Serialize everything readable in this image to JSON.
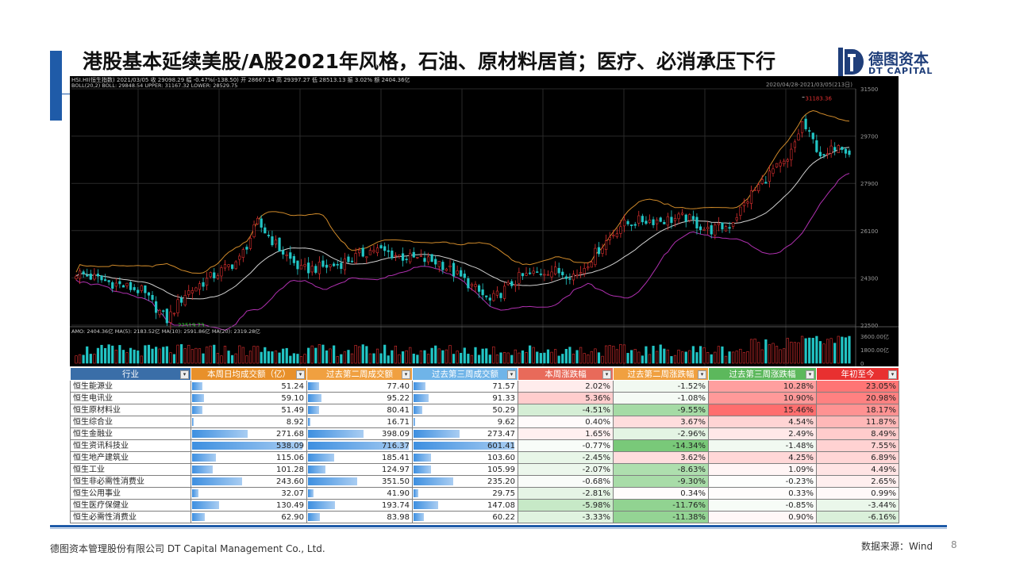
{
  "header": {
    "title": "港股基本延续美股/A股2021年风格，石油、原材料居首；医疗、必消承压下行",
    "logo_cn": "德图资本",
    "logo_en": "DT CAPITAL"
  },
  "chart_data": [
    {
      "type": "candlestick",
      "info_line_1": "HSI.HI(恒生指数)   2021/03/05  收 29098.29  幅 -0.47%(-138.50)  开 28667.14  高 29397.27  低 28513.13  振 3.02%  额 2404.36亿",
      "info_line_2": "BOLL(20,2) BOLL: 29848.54  UPPER: 31167.32  LOWER: 28529.75",
      "date_range": "2020/04/28-2021/03/05(213日)",
      "yticks": [
        31500,
        29700,
        27900,
        26100,
        24300,
        22500
      ],
      "ylim": [
        22500,
        31500
      ],
      "max_label": "31183.36",
      "min_label": "22519.73",
      "colors": {
        "up": "#e03030",
        "down": "#22c5c5",
        "mid": "#d0d0d0",
        "upper": "#d08a2a",
        "lower": "#b030b0"
      }
    },
    {
      "type": "bar",
      "info_line": "AMO: 2404.36亿  MA(5): 2183.52亿  MA(10): 2591.86亿  MA(20): 2319.28亿",
      "yticks": [
        "3600.00亿",
        "1800.00亿",
        "0"
      ]
    },
    {
      "type": "table",
      "columns": [
        "行业",
        "本周日均成交额（亿）",
        "过去第二周成交额",
        "过去第三周成交额",
        "本周涨跌幅",
        "过去第二周涨跌幅",
        "过去第三周涨跌幅",
        "年初至今"
      ],
      "header_colors": [
        "#3a6ea8",
        "#e8902a",
        "#f0a040",
        "#6fb4e8",
        "#e86a5a",
        "#f0a040",
        "#5cb85c",
        "#e83030"
      ],
      "rows": [
        {
          "name": "恒生能源业",
          "v1": "51.24",
          "v2": "77.40",
          "v3": "71.57",
          "c1": "2.02%",
          "c2": "-1.52%",
          "c3": "10.28%",
          "ytd": "23.05%"
        },
        {
          "name": "恒生电讯业",
          "v1": "59.10",
          "v2": "95.22",
          "v3": "91.33",
          "c1": "5.36%",
          "c2": "-1.08%",
          "c3": "10.90%",
          "ytd": "20.98%"
        },
        {
          "name": "恒生原材料业",
          "v1": "51.49",
          "v2": "80.41",
          "v3": "50.29",
          "c1": "-4.51%",
          "c2": "-9.55%",
          "c3": "15.46%",
          "ytd": "18.17%"
        },
        {
          "name": "恒生综合业",
          "v1": "8.92",
          "v2": "16.71",
          "v3": "9.62",
          "c1": "0.40%",
          "c2": "3.67%",
          "c3": "4.54%",
          "ytd": "11.87%"
        },
        {
          "name": "恒生金融业",
          "v1": "271.68",
          "v2": "398.09",
          "v3": "273.47",
          "c1": "1.65%",
          "c2": "-2.96%",
          "c3": "2.49%",
          "ytd": "8.49%"
        },
        {
          "name": "恒生资讯科技业",
          "v1": "538.09",
          "v2": "716.37",
          "v3": "601.41",
          "c1": "-0.77%",
          "c2": "-14.34%",
          "c3": "-1.48%",
          "ytd": "7.55%"
        },
        {
          "name": "恒生地产建筑业",
          "v1": "115.06",
          "v2": "185.41",
          "v3": "103.60",
          "c1": "-2.45%",
          "c2": "3.62%",
          "c3": "4.25%",
          "ytd": "6.89%"
        },
        {
          "name": "恒生工业",
          "v1": "101.28",
          "v2": "124.97",
          "v3": "105.99",
          "c1": "-2.07%",
          "c2": "-8.63%",
          "c3": "1.09%",
          "ytd": "4.49%"
        },
        {
          "name": "恒生非必需性消费业",
          "v1": "243.60",
          "v2": "351.50",
          "v3": "235.20",
          "c1": "-0.68%",
          "c2": "-9.30%",
          "c3": "-0.23%",
          "ytd": "2.65%"
        },
        {
          "name": "恒生公用事业",
          "v1": "32.07",
          "v2": "41.90",
          "v3": "29.75",
          "c1": "-2.81%",
          "c2": "0.34%",
          "c3": "0.33%",
          "ytd": "0.99%"
        },
        {
          "name": "恒生医疗保健业",
          "v1": "130.49",
          "v2": "193.74",
          "v3": "147.08",
          "c1": "-5.98%",
          "c2": "-11.76%",
          "c3": "-0.85%",
          "ytd": "-3.44%"
        },
        {
          "name": "恒生必需性消费业",
          "v1": "62.90",
          "v2": "83.98",
          "v3": "60.22",
          "c1": "-3.33%",
          "c2": "-11.38%",
          "c3": "0.90%",
          "ytd": "-6.16%"
        }
      ]
    }
  ],
  "footer": {
    "company": "德图资本管理股份有限公司  DT Capital Management Co., Ltd.",
    "source": "数据来源：Wind",
    "page": "8"
  }
}
